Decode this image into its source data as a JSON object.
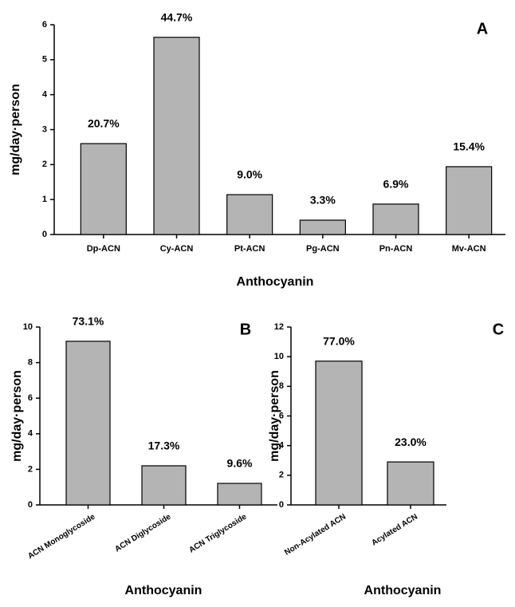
{
  "chart_data": [
    {
      "type": "bar",
      "panel_label": "A",
      "y_label": "mg/day·person",
      "x_label": "Anthocyanin",
      "categories": [
        "Dp-ACN",
        "Cy-ACN",
        "Pt-ACN",
        "Pg-ACN",
        "Pn-ACN",
        "Mv-ACN"
      ],
      "values": [
        2.6,
        5.64,
        1.14,
        0.41,
        0.87,
        1.94
      ],
      "percent_labels": [
        "20.7%",
        "44.7%",
        "9.0%",
        "3.3%",
        "6.9%",
        "15.4%"
      ],
      "ylim": [
        0,
        6
      ],
      "yticks": [
        0,
        1,
        2,
        3,
        4,
        5,
        6
      ],
      "color": "#b4b4b4"
    },
    {
      "type": "bar",
      "panel_label": "B",
      "y_label": "mg/day·person",
      "x_label": "Anthocyanin",
      "categories": [
        "ACN Monoglycoside",
        "ACN Diglycoside",
        "ACN Triglycoside"
      ],
      "values": [
        9.2,
        2.2,
        1.21
      ],
      "percent_labels": [
        "73.1%",
        "17.3%",
        "9.6%"
      ],
      "ylim": [
        0,
        10
      ],
      "yticks": [
        0,
        2,
        4,
        6,
        8,
        10
      ],
      "color": "#b4b4b4"
    },
    {
      "type": "bar",
      "panel_label": "C",
      "y_label": "mg/day·person",
      "x_label": "Anthocyanin",
      "categories": [
        "Non-Acylated ACN",
        "Acylated ACN"
      ],
      "values": [
        9.7,
        2.9
      ],
      "percent_labels": [
        "77.0%",
        "23.0%"
      ],
      "ylim": [
        0,
        12
      ],
      "yticks": [
        0,
        2,
        4,
        6,
        8,
        10,
        12
      ],
      "color": "#b4b4b4"
    }
  ]
}
